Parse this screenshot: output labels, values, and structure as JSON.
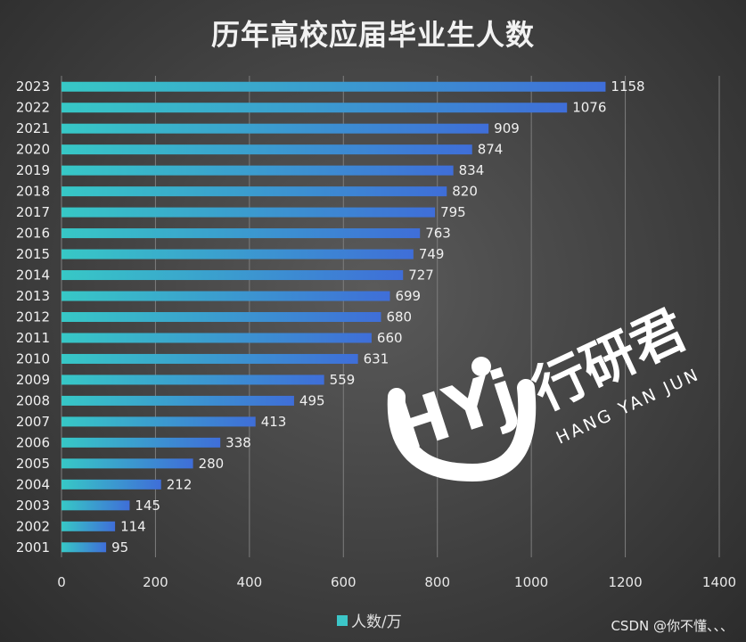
{
  "chart_data": {
    "type": "bar",
    "orientation": "horizontal",
    "title": "历年高校应届毕业生人数",
    "categories": [
      "2023",
      "2022",
      "2021",
      "2020",
      "2019",
      "2018",
      "2017",
      "2016",
      "2015",
      "2014",
      "2013",
      "2012",
      "2011",
      "2010",
      "2009",
      "2008",
      "2007",
      "2006",
      "2005",
      "2004",
      "2003",
      "2002",
      "2001"
    ],
    "values": [
      1158,
      1076,
      909,
      874,
      834,
      820,
      795,
      763,
      749,
      727,
      699,
      680,
      660,
      631,
      559,
      495,
      413,
      338,
      280,
      212,
      145,
      114,
      95
    ],
    "xlim": [
      0,
      1400
    ],
    "xticks": [
      0,
      200,
      400,
      600,
      800,
      1000,
      1200,
      1400
    ],
    "legend": "人数/万",
    "legend_position": "bottom",
    "grid": true
  },
  "logo": {
    "mark": "HYj",
    "name_cn": "行研君",
    "name_en": "HANG YAN JUN"
  },
  "watermark": "CSDN @你不懂、、、",
  "colors": {
    "bar_start": "#37c8c6",
    "bar_end": "#3f6ed8",
    "text": "#f0f0f0",
    "grid": "#8a8a8a"
  }
}
